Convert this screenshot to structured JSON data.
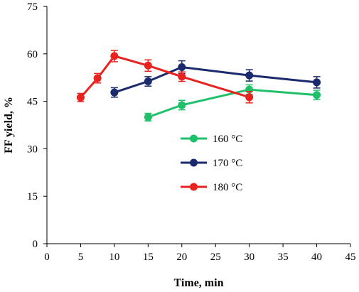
{
  "chart_data": {
    "type": "line",
    "title": "",
    "xlabel": "Time, min",
    "ylabel": "FF yield, %",
    "xlim": [
      0,
      45
    ],
    "ylim": [
      0,
      75
    ],
    "xticks": [
      0,
      5,
      10,
      15,
      20,
      25,
      30,
      35,
      40,
      45
    ],
    "yticks": [
      0,
      15,
      30,
      45,
      60,
      75
    ],
    "grid": false,
    "legend_position": "center",
    "series": [
      {
        "name": "160 °C",
        "color": "#1fc06a",
        "x": [
          15,
          20,
          30,
          40
        ],
        "y": [
          40.0,
          43.8,
          48.7,
          47.0
        ],
        "err": [
          1.2,
          1.5,
          1.5,
          1.5
        ]
      },
      {
        "name": "170 °C",
        "color": "#1a2a6c",
        "x": [
          10,
          15,
          20,
          30,
          40
        ],
        "y": [
          47.8,
          51.3,
          55.8,
          53.2,
          51.0
        ],
        "err": [
          1.5,
          1.5,
          2.0,
          1.8,
          1.8
        ]
      },
      {
        "name": "180 °C",
        "color": "#e8231f",
        "x": [
          5,
          7.5,
          10,
          15,
          20,
          30
        ],
        "y": [
          46.2,
          52.3,
          59.3,
          56.3,
          52.8,
          46.3
        ],
        "err": [
          1.3,
          1.5,
          1.8,
          1.8,
          1.5,
          1.8
        ]
      }
    ]
  }
}
